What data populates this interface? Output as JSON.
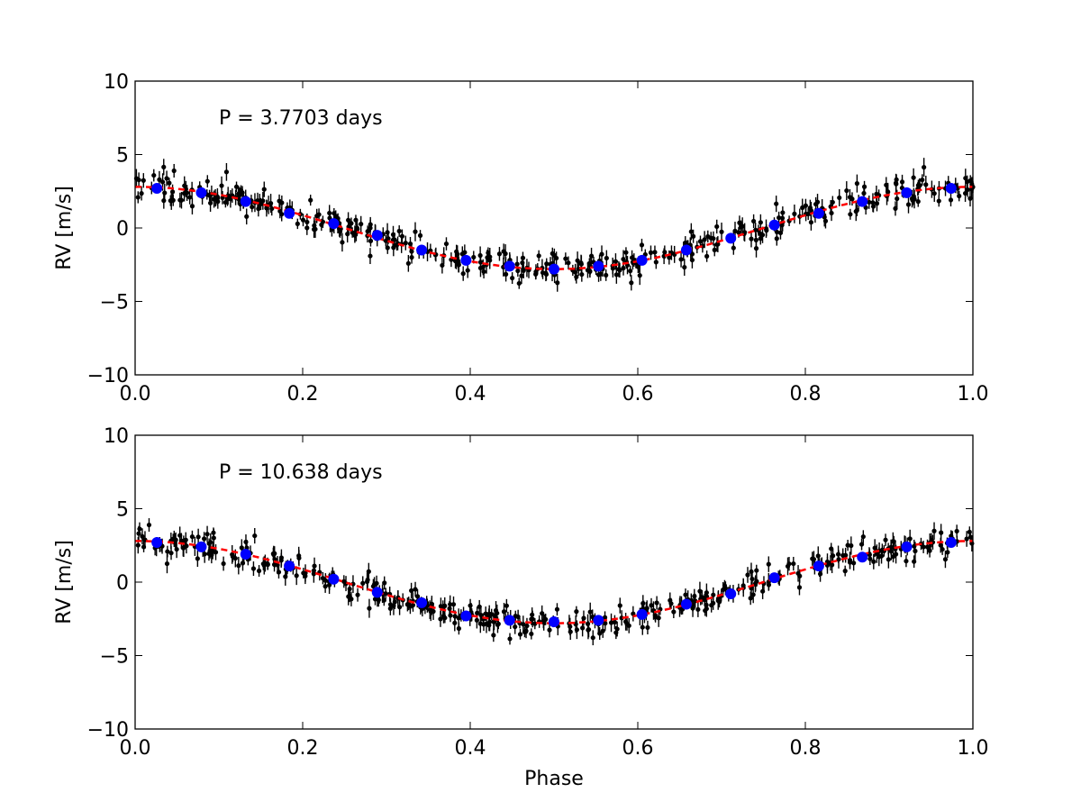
{
  "chart_data": [
    {
      "type": "scatter",
      "annotation": "P = 3.7703 days",
      "xlabel": "",
      "ylabel": "RV [m/s]",
      "xlim": [
        0.0,
        1.0
      ],
      "ylim": [
        -10,
        10
      ],
      "x_ticks": [
        "0.0",
        "0.2",
        "0.4",
        "0.6",
        "0.8",
        "1.0"
      ],
      "y_ticks": [
        "10",
        "5",
        "0",
        "−5",
        "−10"
      ],
      "grid": false,
      "colors": {
        "data": "#000000",
        "binned": "#0000ff",
        "model": "#ff0000"
      },
      "model": {
        "amplitude": 2.8,
        "phase_of_minimum": 0.5,
        "offset": 0.0
      },
      "raw_scatter_sigma": 0.5,
      "raw_error_bar": 0.5,
      "raw_point_count": 420,
      "binned": {
        "phase": [
          0.026,
          0.079,
          0.132,
          0.184,
          0.237,
          0.289,
          0.342,
          0.395,
          0.447,
          0.5,
          0.553,
          0.605,
          0.658,
          0.711,
          0.763,
          0.816,
          0.868,
          0.921,
          0.974
        ],
        "rv": [
          2.7,
          2.4,
          1.8,
          1.0,
          0.3,
          -0.5,
          -1.5,
          -2.2,
          -2.6,
          -2.8,
          -2.6,
          -2.2,
          -1.5,
          -0.7,
          0.2,
          1.0,
          1.8,
          2.4,
          2.7
        ]
      }
    },
    {
      "type": "scatter",
      "annotation": "P = 10.638 days",
      "xlabel": "Phase",
      "ylabel": "RV [m/s]",
      "xlim": [
        0.0,
        1.0
      ],
      "ylim": [
        -10,
        10
      ],
      "x_ticks": [
        "0.0",
        "0.2",
        "0.4",
        "0.6",
        "0.8",
        "1.0"
      ],
      "y_ticks": [
        "10",
        "5",
        "0",
        "−5",
        "−10"
      ],
      "grid": false,
      "colors": {
        "data": "#000000",
        "binned": "#0000ff",
        "model": "#ff0000"
      },
      "model": {
        "amplitude": 2.8,
        "phase_of_minimum": 0.5,
        "offset": 0.0
      },
      "raw_scatter_sigma": 0.5,
      "raw_error_bar": 0.5,
      "raw_point_count": 420,
      "binned": {
        "phase": [
          0.026,
          0.079,
          0.132,
          0.184,
          0.237,
          0.289,
          0.342,
          0.395,
          0.447,
          0.5,
          0.553,
          0.605,
          0.658,
          0.711,
          0.763,
          0.816,
          0.868,
          0.921,
          0.974
        ],
        "rv": [
          2.7,
          2.4,
          1.9,
          1.1,
          0.2,
          -0.7,
          -1.4,
          -2.3,
          -2.6,
          -2.7,
          -2.6,
          -2.2,
          -1.5,
          -0.8,
          0.3,
          1.1,
          1.7,
          2.4,
          2.7
        ]
      }
    }
  ]
}
